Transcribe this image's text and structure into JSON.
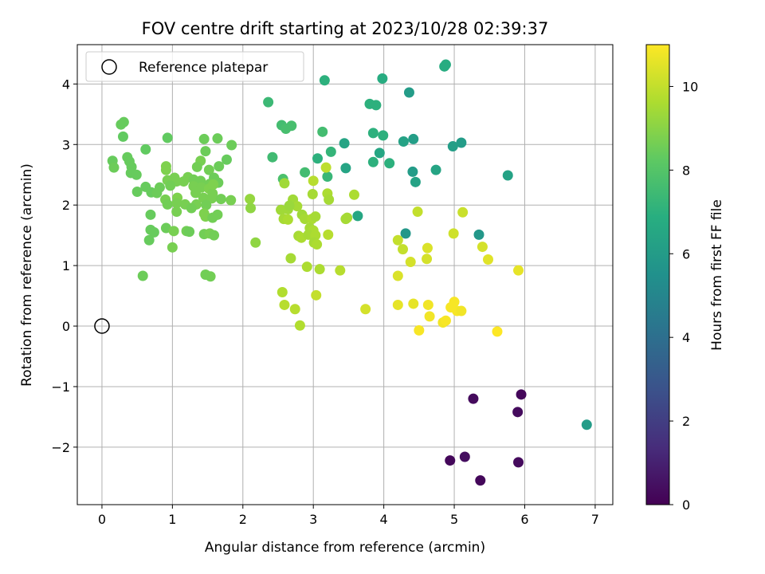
{
  "chart_data": {
    "type": "scatter",
    "title": "FOV centre drift starting at 2023/10/28 02:39:37",
    "xlabel": "Angular distance from reference (arcmin)",
    "ylabel": "Rotation from reference (arcmin)",
    "colorbar_label": "Hours from first FF file",
    "xlim": [
      -0.35,
      7.25
    ],
    "ylim": [
      -2.95,
      4.65
    ],
    "clim": [
      0,
      11
    ],
    "x_ticks": [
      0,
      1,
      2,
      3,
      4,
      5,
      6,
      7
    ],
    "y_ticks": [
      -2,
      -1,
      0,
      1,
      2,
      3,
      4
    ],
    "x_tick_labels": [
      "0",
      "1",
      "2",
      "3",
      "4",
      "5",
      "6",
      "7"
    ],
    "y_tick_labels": [
      "−2",
      "−1",
      "0",
      "1",
      "2",
      "3",
      "4"
    ],
    "colorbar_ticks": [
      0,
      2,
      4,
      6,
      8,
      10
    ],
    "colorbar_tick_labels": [
      "0",
      "2",
      "4",
      "6",
      "8",
      "10"
    ],
    "colormap": "viridis",
    "grid": true,
    "legend": {
      "position": "top-left",
      "label": "Reference platepar"
    },
    "reference_point": {
      "x": 0,
      "y": 0
    },
    "points": [
      {
        "x": 4.94,
        "y": -2.22,
        "h": 0.2
      },
      {
        "x": 5.15,
        "y": -2.16,
        "h": 0.4
      },
      {
        "x": 5.37,
        "y": -2.55,
        "h": 0.2
      },
      {
        "x": 5.91,
        "y": -2.25,
        "h": 0.3
      },
      {
        "x": 5.27,
        "y": -1.2,
        "h": 0.3
      },
      {
        "x": 5.9,
        "y": -1.42,
        "h": 0.3
      },
      {
        "x": 5.95,
        "y": -1.13,
        "h": 0.2
      },
      {
        "x": 6.88,
        "y": -1.63,
        "h": 6.0
      },
      {
        "x": 4.86,
        "y": 4.29,
        "h": 6.8
      },
      {
        "x": 3.16,
        "y": 4.06,
        "h": 7.0
      },
      {
        "x": 3.98,
        "y": 4.09,
        "h": 6.8
      },
      {
        "x": 4.36,
        "y": 3.86,
        "h": 6.0
      },
      {
        "x": 2.36,
        "y": 3.7,
        "h": 7.4
      },
      {
        "x": 3.8,
        "y": 3.67,
        "h": 7.0
      },
      {
        "x": 3.89,
        "y": 3.65,
        "h": 7.0
      },
      {
        "x": 2.55,
        "y": 3.32,
        "h": 7.6
      },
      {
        "x": 2.61,
        "y": 3.26,
        "h": 7.7
      },
      {
        "x": 2.69,
        "y": 3.31,
        "h": 7.7
      },
      {
        "x": 3.13,
        "y": 3.21,
        "h": 7.6
      },
      {
        "x": 3.85,
        "y": 3.19,
        "h": 7.0
      },
      {
        "x": 3.99,
        "y": 3.15,
        "h": 7.0
      },
      {
        "x": 4.28,
        "y": 3.05,
        "h": 6.3
      },
      {
        "x": 4.42,
        "y": 3.09,
        "h": 6.1
      },
      {
        "x": 5.1,
        "y": 3.03,
        "h": 6.0
      },
      {
        "x": 4.98,
        "y": 2.97,
        "h": 6.1
      },
      {
        "x": 3.44,
        "y": 3.02,
        "h": 6.4
      },
      {
        "x": 3.25,
        "y": 2.88,
        "h": 7.2
      },
      {
        "x": 3.94,
        "y": 2.86,
        "h": 6.5
      },
      {
        "x": 2.42,
        "y": 2.79,
        "h": 7.5
      },
      {
        "x": 3.06,
        "y": 2.77,
        "h": 7.0
      },
      {
        "x": 3.85,
        "y": 2.71,
        "h": 7.0
      },
      {
        "x": 4.08,
        "y": 2.69,
        "h": 7.0
      },
      {
        "x": 3.46,
        "y": 2.61,
        "h": 6.4
      },
      {
        "x": 4.41,
        "y": 2.55,
        "h": 6.0
      },
      {
        "x": 4.74,
        "y": 2.58,
        "h": 6.4
      },
      {
        "x": 5.76,
        "y": 2.49,
        "h": 6.3
      },
      {
        "x": 2.88,
        "y": 2.54,
        "h": 7.6
      },
      {
        "x": 3.2,
        "y": 2.47,
        "h": 7.3
      },
      {
        "x": 4.45,
        "y": 2.38,
        "h": 6.3
      },
      {
        "x": 2.57,
        "y": 2.43,
        "h": 7.8
      },
      {
        "x": 3.63,
        "y": 1.82,
        "h": 6.5
      },
      {
        "x": 4.31,
        "y": 1.53,
        "h": 5.8
      },
      {
        "x": 5.35,
        "y": 1.51,
        "h": 5.8
      },
      {
        "x": 4.88,
        "y": 4.32,
        "h": 6.8
      },
      {
        "x": 0.27,
        "y": 3.33,
        "h": 8.4
      },
      {
        "x": 0.31,
        "y": 3.37,
        "h": 8.4
      },
      {
        "x": 0.3,
        "y": 3.13,
        "h": 8.3
      },
      {
        "x": 0.93,
        "y": 3.11,
        "h": 8.3
      },
      {
        "x": 1.45,
        "y": 3.09,
        "h": 8.5
      },
      {
        "x": 1.64,
        "y": 3.1,
        "h": 8.5
      },
      {
        "x": 1.84,
        "y": 2.99,
        "h": 8.5
      },
      {
        "x": 0.62,
        "y": 2.92,
        "h": 8.3
      },
      {
        "x": 1.47,
        "y": 2.89,
        "h": 8.5
      },
      {
        "x": 0.36,
        "y": 2.79,
        "h": 8.4
      },
      {
        "x": 0.39,
        "y": 2.72,
        "h": 8.4
      },
      {
        "x": 1.77,
        "y": 2.75,
        "h": 8.4
      },
      {
        "x": 0.15,
        "y": 2.73,
        "h": 8.4
      },
      {
        "x": 1.4,
        "y": 2.73,
        "h": 8.7
      },
      {
        "x": 0.17,
        "y": 2.62,
        "h": 8.5
      },
      {
        "x": 0.42,
        "y": 2.63,
        "h": 8.4
      },
      {
        "x": 0.91,
        "y": 2.64,
        "h": 8.8
      },
      {
        "x": 1.35,
        "y": 2.63,
        "h": 8.6
      },
      {
        "x": 1.66,
        "y": 2.64,
        "h": 8.5
      },
      {
        "x": 0.41,
        "y": 2.53,
        "h": 8.4
      },
      {
        "x": 0.49,
        "y": 2.5,
        "h": 8.4
      },
      {
        "x": 0.91,
        "y": 2.58,
        "h": 8.8
      },
      {
        "x": 1.52,
        "y": 2.58,
        "h": 8.6
      },
      {
        "x": 1.03,
        "y": 2.45,
        "h": 8.7
      },
      {
        "x": 1.22,
        "y": 2.46,
        "h": 8.7
      },
      {
        "x": 1.3,
        "y": 2.42,
        "h": 8.6
      },
      {
        "x": 1.59,
        "y": 2.45,
        "h": 8.5
      },
      {
        "x": 1.65,
        "y": 2.37,
        "h": 8.5
      },
      {
        "x": 0.93,
        "y": 2.41,
        "h": 8.7
      },
      {
        "x": 1.06,
        "y": 2.39,
        "h": 8.7
      },
      {
        "x": 1.16,
        "y": 2.39,
        "h": 8.7
      },
      {
        "x": 1.4,
        "y": 2.4,
        "h": 8.6
      },
      {
        "x": 1.53,
        "y": 2.35,
        "h": 8.6
      },
      {
        "x": 0.62,
        "y": 2.3,
        "h": 8.4
      },
      {
        "x": 0.82,
        "y": 2.29,
        "h": 8.5
      },
      {
        "x": 0.97,
        "y": 2.32,
        "h": 8.6
      },
      {
        "x": 1.3,
        "y": 2.31,
        "h": 8.7
      },
      {
        "x": 1.41,
        "y": 2.29,
        "h": 8.7
      },
      {
        "x": 1.52,
        "y": 2.27,
        "h": 8.8
      },
      {
        "x": 0.5,
        "y": 2.22,
        "h": 8.4
      },
      {
        "x": 0.7,
        "y": 2.21,
        "h": 8.4
      },
      {
        "x": 0.78,
        "y": 2.2,
        "h": 8.5
      },
      {
        "x": 1.33,
        "y": 2.2,
        "h": 8.7
      },
      {
        "x": 1.57,
        "y": 2.19,
        "h": 8.7
      },
      {
        "x": 1.44,
        "y": 2.12,
        "h": 8.7
      },
      {
        "x": 1.56,
        "y": 2.11,
        "h": 8.7
      },
      {
        "x": 1.07,
        "y": 2.12,
        "h": 8.8
      },
      {
        "x": 0.9,
        "y": 2.09,
        "h": 8.7
      },
      {
        "x": 1.69,
        "y": 2.1,
        "h": 8.6
      },
      {
        "x": 1.83,
        "y": 2.08,
        "h": 8.7
      },
      {
        "x": 0.93,
        "y": 2.01,
        "h": 8.6
      },
      {
        "x": 1.06,
        "y": 2.03,
        "h": 8.7
      },
      {
        "x": 1.18,
        "y": 2.01,
        "h": 8.7
      },
      {
        "x": 1.34,
        "y": 2.01,
        "h": 8.7
      },
      {
        "x": 1.48,
        "y": 2.0,
        "h": 8.6
      },
      {
        "x": 1.27,
        "y": 1.95,
        "h": 8.6
      },
      {
        "x": 1.06,
        "y": 1.89,
        "h": 8.7
      },
      {
        "x": 1.45,
        "y": 1.86,
        "h": 8.8
      },
      {
        "x": 1.64,
        "y": 1.84,
        "h": 8.6
      },
      {
        "x": 0.69,
        "y": 1.84,
        "h": 8.4
      },
      {
        "x": 1.47,
        "y": 1.81,
        "h": 8.8
      },
      {
        "x": 1.57,
        "y": 1.79,
        "h": 8.6
      },
      {
        "x": 0.91,
        "y": 1.62,
        "h": 8.5
      },
      {
        "x": 0.69,
        "y": 1.59,
        "h": 8.4
      },
      {
        "x": 0.74,
        "y": 1.55,
        "h": 8.4
      },
      {
        "x": 1.02,
        "y": 1.57,
        "h": 8.7
      },
      {
        "x": 1.2,
        "y": 1.57,
        "h": 8.6
      },
      {
        "x": 1.24,
        "y": 1.56,
        "h": 8.5
      },
      {
        "x": 1.45,
        "y": 1.52,
        "h": 8.6
      },
      {
        "x": 1.53,
        "y": 1.53,
        "h": 8.7
      },
      {
        "x": 1.59,
        "y": 1.5,
        "h": 8.6
      },
      {
        "x": 0.67,
        "y": 1.42,
        "h": 8.4
      },
      {
        "x": 1.0,
        "y": 1.3,
        "h": 8.7
      },
      {
        "x": 0.58,
        "y": 0.83,
        "h": 8.5
      },
      {
        "x": 1.47,
        "y": 0.85,
        "h": 8.6
      },
      {
        "x": 1.54,
        "y": 0.82,
        "h": 8.6
      },
      {
        "x": 1.58,
        "y": 2.34,
        "h": 8.8
      },
      {
        "x": 2.1,
        "y": 2.1,
        "h": 9.2
      },
      {
        "x": 2.11,
        "y": 1.95,
        "h": 9.1
      },
      {
        "x": 2.18,
        "y": 1.38,
        "h": 9.1
      },
      {
        "x": 2.59,
        "y": 2.36,
        "h": 9.4
      },
      {
        "x": 2.54,
        "y": 1.92,
        "h": 9.4
      },
      {
        "x": 2.64,
        "y": 1.93,
        "h": 9.4
      },
      {
        "x": 2.58,
        "y": 1.77,
        "h": 9.5
      },
      {
        "x": 2.64,
        "y": 1.76,
        "h": 9.6
      },
      {
        "x": 2.71,
        "y": 2.09,
        "h": 9.4
      },
      {
        "x": 2.77,
        "y": 1.98,
        "h": 9.5
      },
      {
        "x": 2.66,
        "y": 1.99,
        "h": 9.3
      },
      {
        "x": 2.84,
        "y": 1.84,
        "h": 9.4
      },
      {
        "x": 2.88,
        "y": 1.77,
        "h": 9.5
      },
      {
        "x": 2.98,
        "y": 1.77,
        "h": 9.6
      },
      {
        "x": 3.03,
        "y": 1.81,
        "h": 9.5
      },
      {
        "x": 2.95,
        "y": 1.62,
        "h": 9.5
      },
      {
        "x": 3.0,
        "y": 1.58,
        "h": 9.6
      },
      {
        "x": 2.79,
        "y": 1.49,
        "h": 9.5
      },
      {
        "x": 2.83,
        "y": 1.46,
        "h": 9.6
      },
      {
        "x": 2.93,
        "y": 1.51,
        "h": 9.5
      },
      {
        "x": 3.03,
        "y": 1.5,
        "h": 9.6
      },
      {
        "x": 3.01,
        "y": 1.38,
        "h": 9.5
      },
      {
        "x": 3.05,
        "y": 1.35,
        "h": 9.6
      },
      {
        "x": 3.21,
        "y": 1.51,
        "h": 9.8
      },
      {
        "x": 3.0,
        "y": 2.4,
        "h": 9.8
      },
      {
        "x": 3.18,
        "y": 2.62,
        "h": 9.9
      },
      {
        "x": 2.99,
        "y": 2.18,
        "h": 9.5
      },
      {
        "x": 3.2,
        "y": 2.19,
        "h": 9.6
      },
      {
        "x": 3.22,
        "y": 2.09,
        "h": 9.5
      },
      {
        "x": 3.58,
        "y": 2.17,
        "h": 9.6
      },
      {
        "x": 3.46,
        "y": 1.77,
        "h": 9.5
      },
      {
        "x": 3.48,
        "y": 1.79,
        "h": 9.5
      },
      {
        "x": 2.68,
        "y": 1.12,
        "h": 9.5
      },
      {
        "x": 2.91,
        "y": 0.98,
        "h": 9.6
      },
      {
        "x": 3.09,
        "y": 0.94,
        "h": 9.6
      },
      {
        "x": 3.38,
        "y": 0.92,
        "h": 9.8
      },
      {
        "x": 2.56,
        "y": 0.56,
        "h": 9.7
      },
      {
        "x": 2.59,
        "y": 0.35,
        "h": 9.8
      },
      {
        "x": 2.74,
        "y": 0.28,
        "h": 9.8
      },
      {
        "x": 2.81,
        "y": 0.01,
        "h": 9.7
      },
      {
        "x": 3.04,
        "y": 0.51,
        "h": 10.0
      },
      {
        "x": 4.48,
        "y": 1.89,
        "h": 10.0
      },
      {
        "x": 5.12,
        "y": 1.88,
        "h": 10.1
      },
      {
        "x": 4.2,
        "y": 1.42,
        "h": 10.0
      },
      {
        "x": 4.99,
        "y": 1.53,
        "h": 10.2
      },
      {
        "x": 4.27,
        "y": 1.27,
        "h": 10.0
      },
      {
        "x": 4.38,
        "y": 1.06,
        "h": 10.3
      },
      {
        "x": 4.62,
        "y": 1.29,
        "h": 10.4
      },
      {
        "x": 4.61,
        "y": 1.11,
        "h": 10.3
      },
      {
        "x": 5.4,
        "y": 1.31,
        "h": 10.3
      },
      {
        "x": 5.48,
        "y": 1.1,
        "h": 10.5
      },
      {
        "x": 4.2,
        "y": 0.83,
        "h": 10.4
      },
      {
        "x": 5.91,
        "y": 0.92,
        "h": 10.6
      },
      {
        "x": 3.74,
        "y": 0.28,
        "h": 10.3
      },
      {
        "x": 4.2,
        "y": 0.35,
        "h": 10.6
      },
      {
        "x": 4.42,
        "y": 0.37,
        "h": 10.6
      },
      {
        "x": 4.63,
        "y": 0.35,
        "h": 10.8
      },
      {
        "x": 4.65,
        "y": 0.16,
        "h": 10.8
      },
      {
        "x": 4.95,
        "y": 0.31,
        "h": 10.9
      },
      {
        "x": 5.0,
        "y": 0.4,
        "h": 10.9
      },
      {
        "x": 5.04,
        "y": 0.25,
        "h": 10.9
      },
      {
        "x": 5.1,
        "y": 0.25,
        "h": 10.8
      },
      {
        "x": 4.84,
        "y": 0.06,
        "h": 10.8
      },
      {
        "x": 4.88,
        "y": 0.09,
        "h": 10.9
      },
      {
        "x": 4.5,
        "y": -0.07,
        "h": 10.9
      },
      {
        "x": 5.61,
        "y": -0.09,
        "h": 11.0
      }
    ]
  }
}
